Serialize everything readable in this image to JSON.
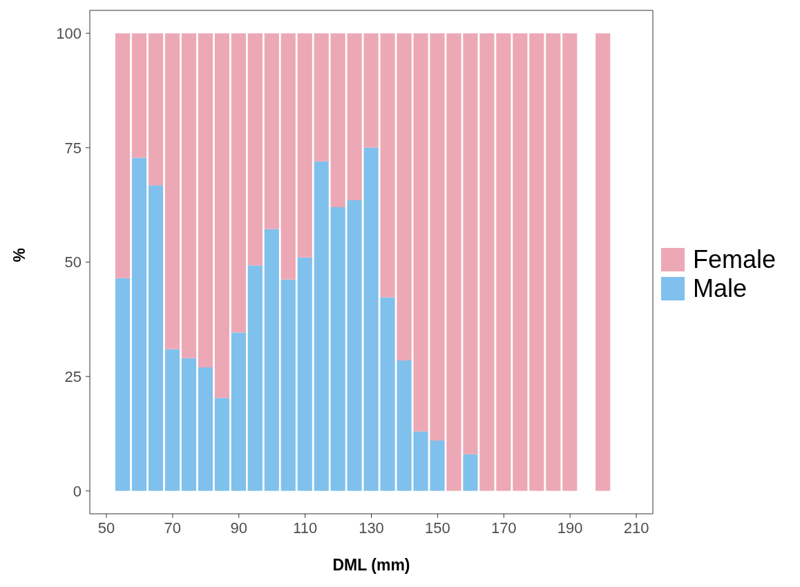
{
  "chart_data": {
    "type": "bar",
    "xlabel": "DML (mm)",
    "ylabel": "%",
    "stacked": true,
    "legend": "right",
    "x": [
      55,
      60,
      65,
      70,
      75,
      80,
      85,
      90,
      95,
      100,
      105,
      110,
      115,
      120,
      125,
      130,
      135,
      140,
      145,
      150,
      155,
      160,
      165,
      170,
      175,
      180,
      185,
      190,
      195,
      200
    ],
    "series": [
      {
        "name": "Male",
        "color": "#80c0ec",
        "values": [
          46.5,
          72.8,
          66.8,
          31,
          29,
          27,
          20.3,
          34.6,
          49.3,
          57.2,
          46.2,
          51,
          72,
          62,
          63.5,
          75,
          42.3,
          28.5,
          13,
          11,
          0,
          8,
          0,
          0,
          0,
          0,
          0,
          0,
          null,
          0
        ]
      },
      {
        "name": "Female",
        "color": "#eda8b5",
        "values": [
          53.5,
          27.2,
          33.2,
          69,
          71,
          73,
          79.7,
          65.4,
          50.7,
          42.8,
          53.8,
          49,
          28,
          38,
          36.5,
          25,
          57.7,
          71.5,
          87,
          89,
          100,
          92,
          100,
          100,
          100,
          100,
          100,
          100,
          null,
          100
        ]
      }
    ],
    "xlim": [
      45,
      215
    ],
    "xticks": [
      50,
      70,
      90,
      110,
      130,
      150,
      170,
      190,
      210
    ],
    "ylim": [
      -5,
      105
    ],
    "yticks": [
      0,
      25,
      50,
      75,
      100
    ]
  }
}
